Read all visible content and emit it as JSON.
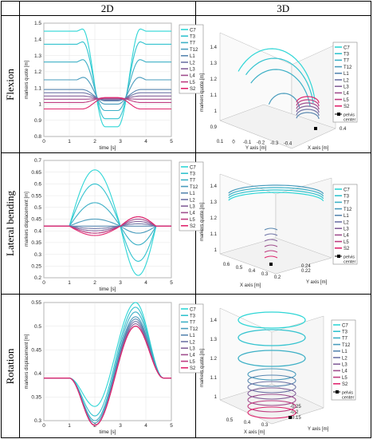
{
  "header": {
    "col2d": "2D",
    "col3d": "3D"
  },
  "rows": [
    {
      "label": "Flexion"
    },
    {
      "label": "Lateral bending"
    },
    {
      "label": "Rotation"
    }
  ],
  "series_names": [
    "C7",
    "T3",
    "T7",
    "T12",
    "L1",
    "L2",
    "L3",
    "L4",
    "L5",
    "S2"
  ],
  "series_colors": [
    "#2fd6d6",
    "#33c3cf",
    "#3db0c6",
    "#4a9cbd",
    "#5a88b1",
    "#6f75a6",
    "#85629b",
    "#a04f8e",
    "#bf3c80",
    "#e0276f"
  ],
  "chart_data": [
    {
      "type": "line",
      "xlabel": "time [s]",
      "ylabel": "markers quote [m]",
      "xlim": [
        0,
        5
      ],
      "ylim": [
        0.8,
        1.5
      ],
      "xticks": [
        "0",
        "1",
        "2",
        "3",
        "4",
        "5"
      ],
      "yticks": [
        "0.8",
        "0.9",
        "1",
        "1.1",
        "1.2",
        "1.3",
        "1.4",
        "1.5"
      ],
      "legend": "top-right",
      "baselines": [
        1.45,
        1.37,
        1.26,
        1.15,
        1.09,
        1.07,
        1.05,
        1.03,
        1.01,
        0.97
      ],
      "extremes": [
        0.86,
        0.91,
        0.96,
        1.0,
        1.02,
        1.025,
        1.03,
        1.035,
        1.04,
        1.04
      ],
      "x": [
        0,
        1.5,
        2.65,
        3.8,
        5
      ]
    },
    {
      "type": "line",
      "xlabel": "time [s]",
      "ylabel": "markers displacement [m]",
      "xlim": [
        0,
        5
      ],
      "ylim": [
        0.2,
        0.7
      ],
      "xticks": [
        "0",
        "1",
        "2",
        "3",
        "4",
        "5"
      ],
      "yticks": [
        "0.2",
        "0.25",
        "0.3",
        "0.35",
        "0.4",
        "0.45",
        "0.5",
        "0.55",
        "0.6",
        "0.65",
        "0.7"
      ],
      "legend": "top-right",
      "baseline": 0.42,
      "peak_at_2": [
        0.66,
        0.6,
        0.52,
        0.45,
        0.42,
        0.41,
        0.4,
        0.39,
        0.39,
        0.38
      ],
      "extreme_at_3_6": [
        0.21,
        0.27,
        0.34,
        0.39,
        0.42,
        0.43,
        0.44,
        0.45,
        0.46,
        0.46
      ]
    },
    {
      "type": "line",
      "xlabel": "time [s]",
      "ylabel": "markers displacement [m]",
      "xlim": [
        0,
        5
      ],
      "ylim": [
        0.3,
        0.55
      ],
      "xticks": [
        "0",
        "1",
        "2",
        "3",
        "4",
        "5"
      ],
      "yticks": [
        "0.3",
        "0.35",
        "0.4",
        "0.45",
        "0.5",
        "0.55"
      ],
      "legend": "top-right",
      "baseline": 0.39,
      "min_at_2": [
        0.33,
        0.31,
        0.3,
        0.295,
        0.29,
        0.29,
        0.29,
        0.29,
        0.29,
        0.29
      ],
      "max_at_3_6": [
        0.55,
        0.54,
        0.53,
        0.52,
        0.515,
        0.51,
        0.505,
        0.5,
        0.5,
        0.5
      ]
    },
    {
      "type": "scatter",
      "ylabel": "markers quote [m]",
      "xlabel": "X axis [m]",
      "zlabel": "Y axis [m]",
      "zticks": [
        "0.9",
        "1",
        "1.1",
        "1.2",
        "1.3",
        "1.4"
      ],
      "xticks": [
        "0.1",
        "0",
        "-0.1",
        "-0.2",
        "-0.3",
        "-0.4"
      ],
      "ticks_extra": [
        "0.4"
      ],
      "legend_extra": "pelvis center"
    },
    {
      "type": "scatter",
      "ylabel": "markers quote [m]",
      "xlabel": "X axis [m]",
      "zlabel": "Y axis [m]",
      "zticks": [
        "1",
        "1.1",
        "1.2",
        "1.3",
        "1.4"
      ],
      "xticks": [
        "0.6",
        "0.5",
        "0.4",
        "0.3",
        "0.2"
      ],
      "yticks": [
        "0.24",
        "0.22"
      ],
      "legend_extra": "pelvis center"
    },
    {
      "type": "scatter",
      "ylabel": "markers quote [m]",
      "xlabel": "X axis [m]",
      "zlabel": "Y axis [m]",
      "zticks": [
        "1",
        "1.1",
        "1.2",
        "1.3",
        "1.4"
      ],
      "xticks": [
        "0.5",
        "0.4",
        "0.3"
      ],
      "yticks": [
        "-0.25",
        "-0.2",
        "-0.15"
      ],
      "legend_extra": "pelvis center"
    }
  ]
}
